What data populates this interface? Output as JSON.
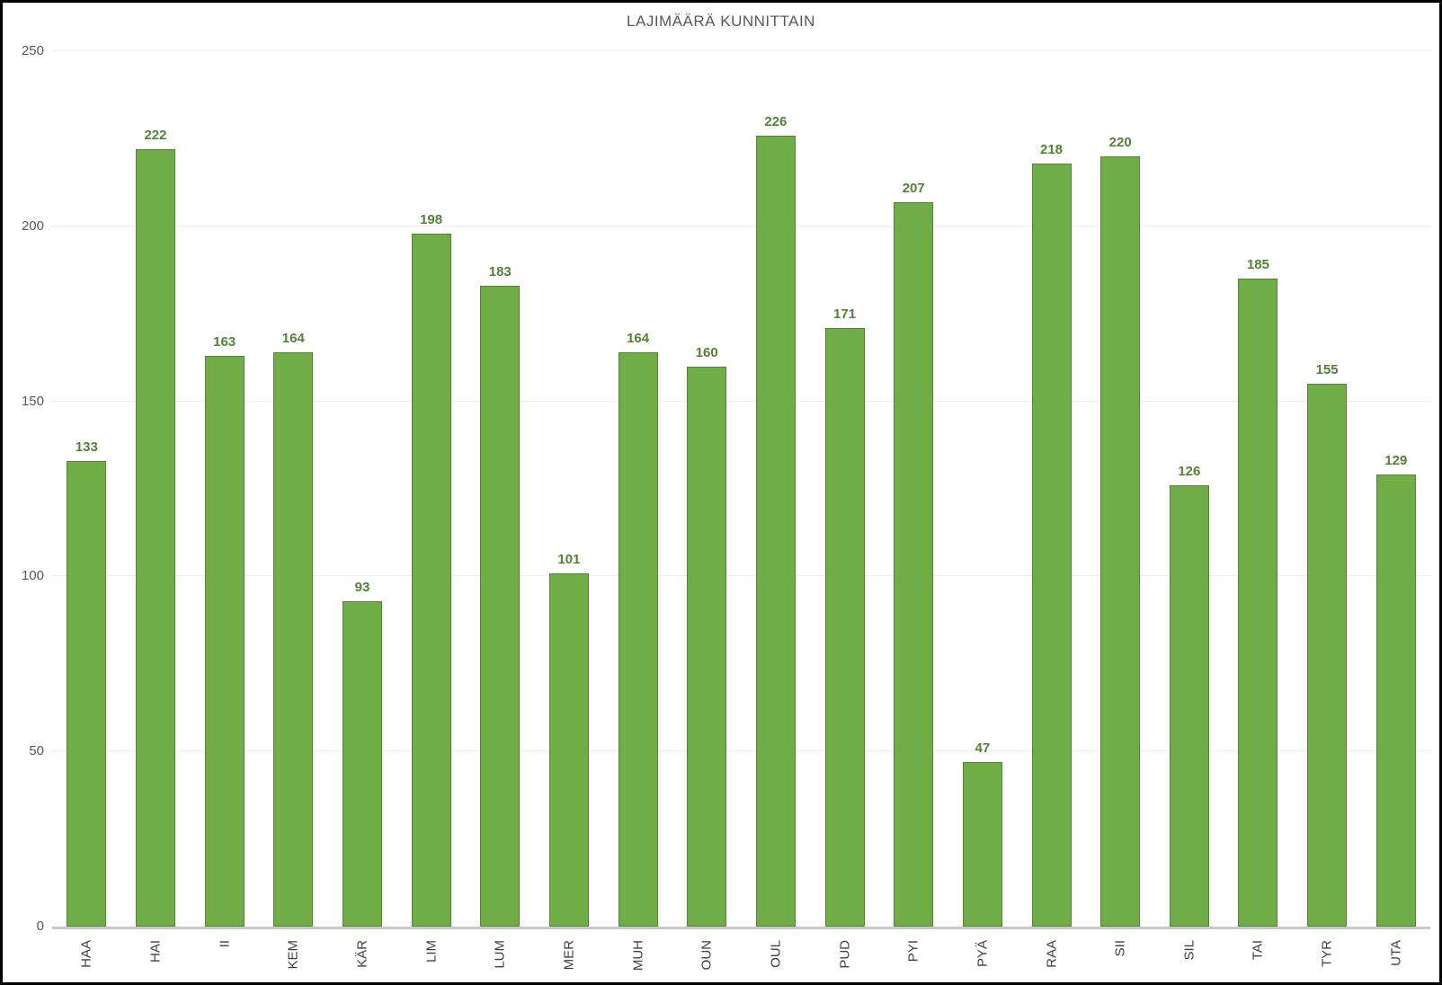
{
  "chart_data": {
    "type": "bar",
    "title": "LAJIMÄÄRÄ KUNNITTAIN",
    "categories": [
      "HAA",
      "HAI",
      "II",
      "KEM",
      "KÄR",
      "LIM",
      "LUM",
      "MER",
      "MUH",
      "OUN",
      "OUL",
      "PUD",
      "PYI",
      "PYÄ",
      "RAA",
      "SII",
      "SIL",
      "TAI",
      "TYR",
      "UTA"
    ],
    "values": [
      133,
      222,
      163,
      164,
      93,
      198,
      183,
      101,
      164,
      160,
      226,
      171,
      207,
      47,
      218,
      220,
      126,
      185,
      155,
      129
    ],
    "xlabel": "",
    "ylabel": "",
    "ylim": [
      0,
      250
    ],
    "yticks": [
      0,
      50,
      100,
      150,
      200,
      250
    ],
    "grid": true,
    "legend": "none",
    "data_labels": "above-bars",
    "colors": {
      "bar_fill": "#70AD47",
      "bar_border": "#538135",
      "value_label": "#538135",
      "x_tick_text": "#404040",
      "y_tick_text": "#595959",
      "title_text": "#595959",
      "gridline": "#ededed",
      "axis_line": "#c9c9c9",
      "frame_border": "#000000"
    }
  }
}
